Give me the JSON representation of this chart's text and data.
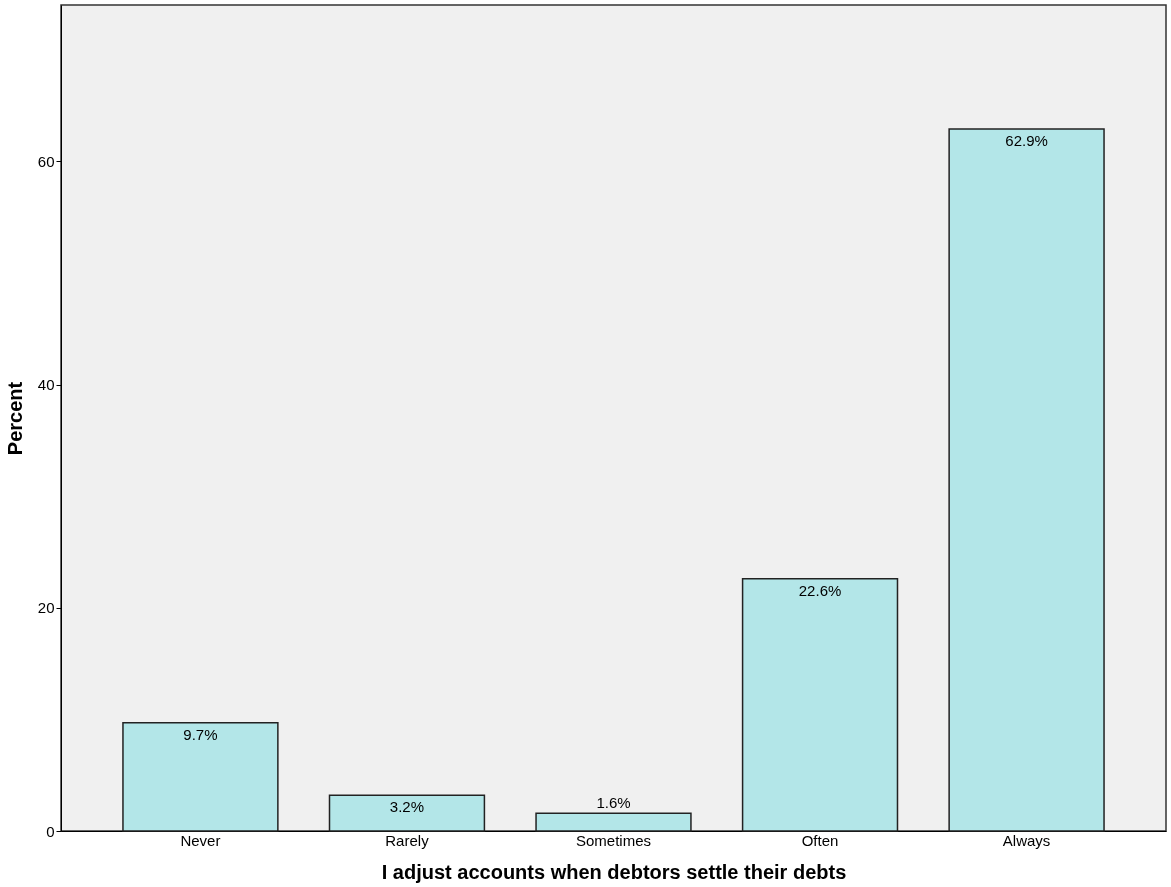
{
  "chart_data": {
    "type": "bar",
    "xlabel": "I adjust accounts when debtors settle their debts",
    "ylabel": "Percent",
    "categories": [
      "Never",
      "Rarely",
      "Sometimes",
      "Often",
      "Always"
    ],
    "values": [
      9.7,
      3.2,
      1.6,
      22.6,
      62.9
    ],
    "value_labels": [
      "9.7%",
      "3.2%",
      "1.6%",
      "22.6%",
      "62.9%"
    ],
    "color": "#b3e6e8",
    "ylim": [
      0,
      74
    ],
    "yticks": [
      0,
      20,
      40,
      60
    ],
    "grid": false
  }
}
